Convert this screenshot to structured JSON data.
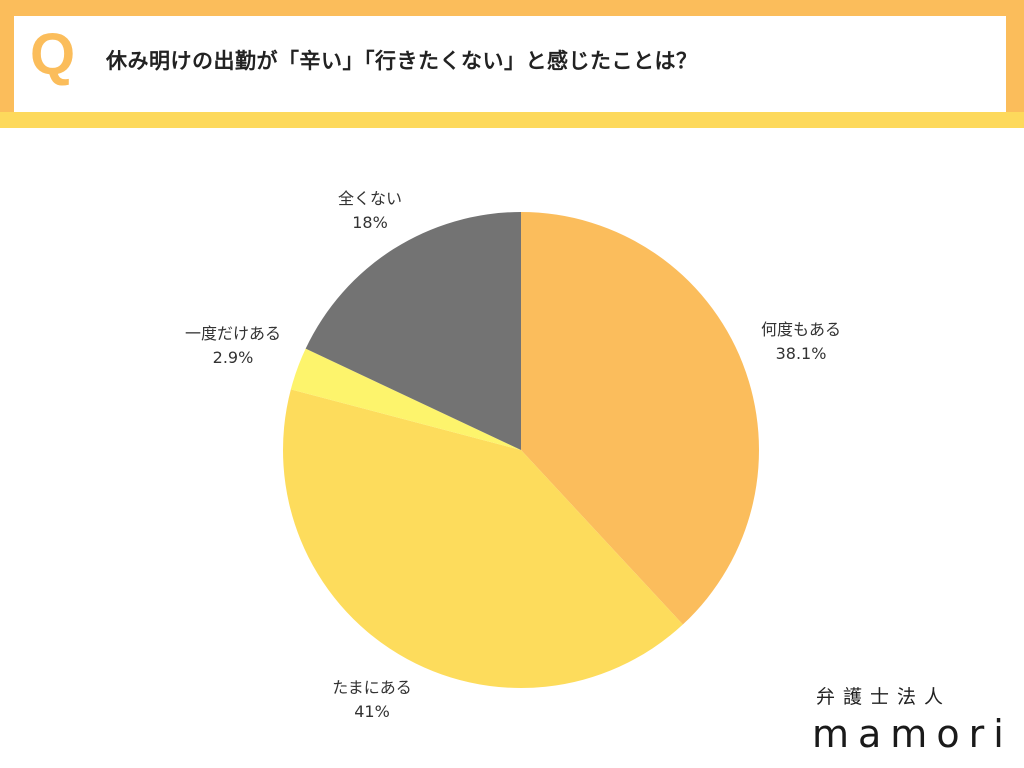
{
  "header": {
    "q_mark": "Q",
    "title": "休み明けの出勤が「辛い」「行きたくない」と感じたことは？"
  },
  "chart_data": {
    "type": "pie",
    "title": "休み明けの出勤が「辛い」「行きたくない」と感じたことは？",
    "start": "top",
    "direction": "clockwise",
    "slices": [
      {
        "label": "何度もある",
        "value": 38.1,
        "value_label": "38.1%",
        "color": "#fbbd5c"
      },
      {
        "label": "たまにある",
        "value": 41,
        "value_label": "41%",
        "color": "#fddc5c"
      },
      {
        "label": "一度だけある",
        "value": 2.9,
        "value_label": "2.9%",
        "color": "#fdf46c"
      },
      {
        "label": "全くない",
        "value": 18,
        "value_label": "18%",
        "color": "#737373"
      }
    ]
  },
  "logo": {
    "sub": "弁護士法人",
    "name": "mamori"
  }
}
